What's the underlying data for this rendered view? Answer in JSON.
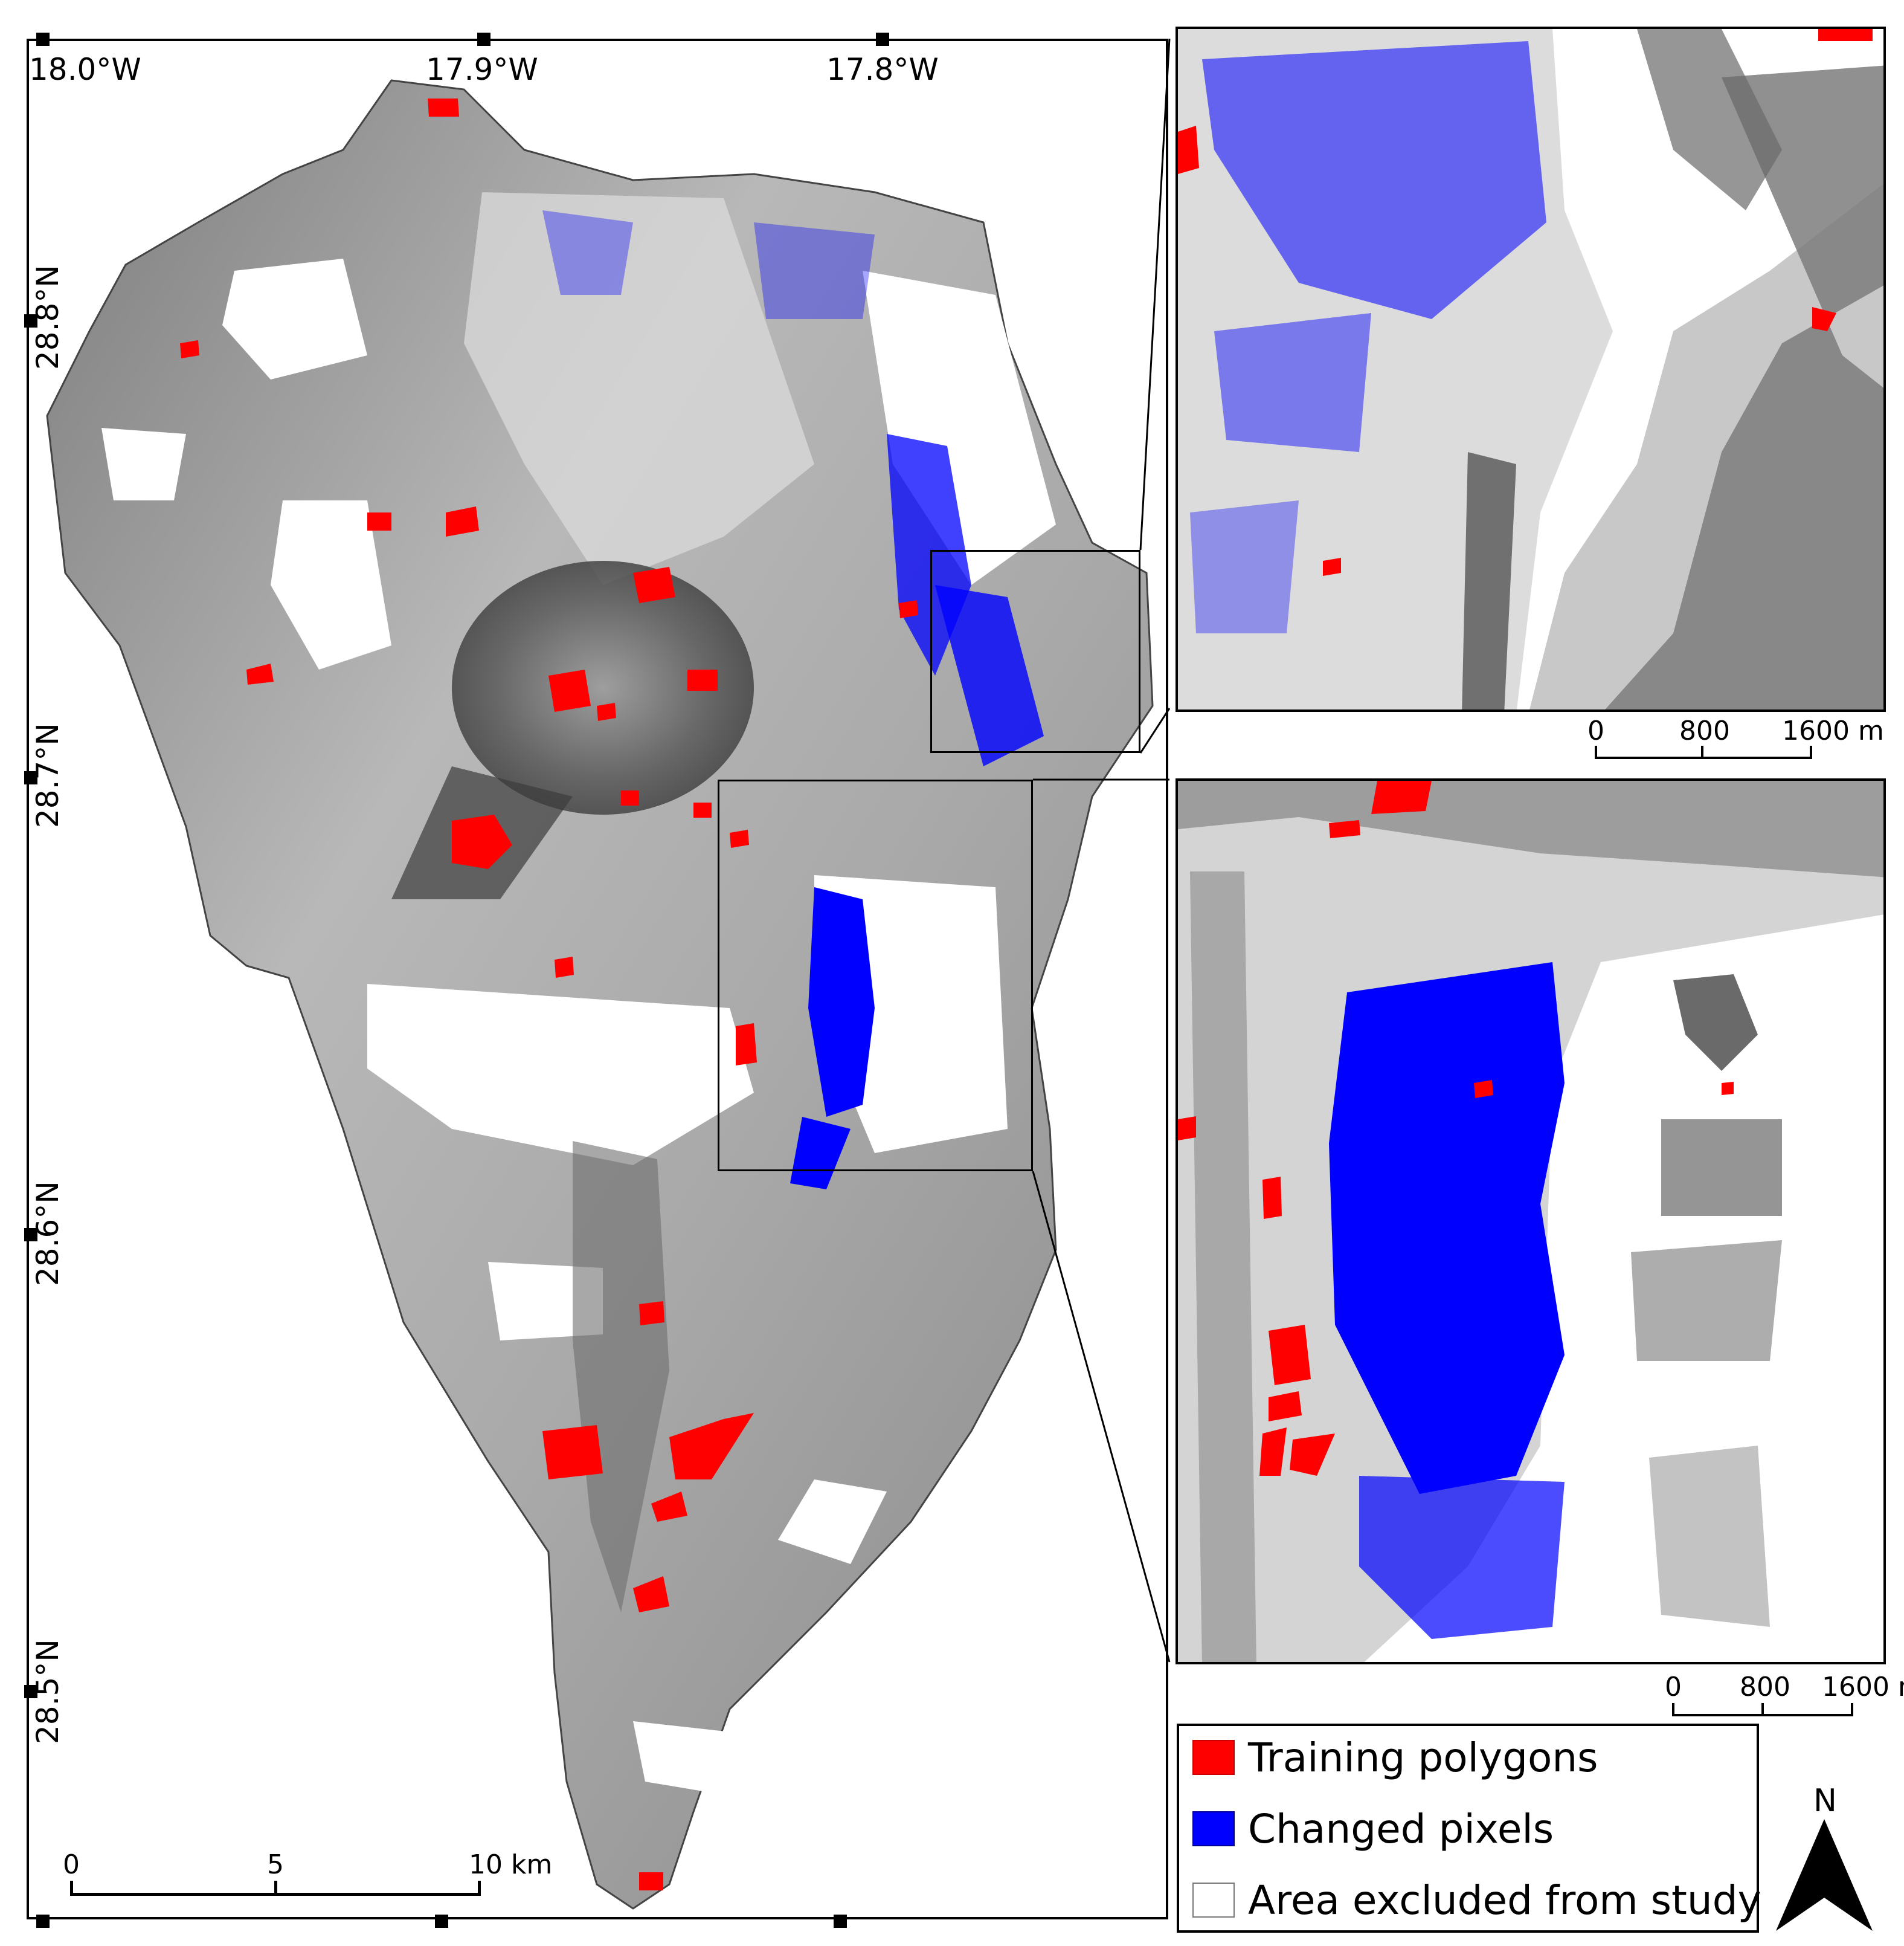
{
  "main_map": {
    "lon_labels": [
      "18.0°W",
      "17.9°W",
      "17.8°W"
    ],
    "lat_labels": [
      "28.8°N",
      "28.7°N",
      "28.6°N",
      "28.5°N"
    ],
    "scale_bar": {
      "ticks": [
        "0",
        "5",
        "10 km"
      ]
    }
  },
  "inset_top": {
    "scale_bar": {
      "ticks": [
        "0",
        "800",
        "1600 m"
      ]
    }
  },
  "inset_bottom": {
    "scale_bar": {
      "ticks": [
        "0",
        "800",
        "1600 m"
      ]
    }
  },
  "legend": {
    "items": [
      {
        "label": "Training polygons",
        "color": "#ff0000"
      },
      {
        "label": "Changed pixels",
        "color": "#0000ff"
      },
      {
        "label": "Area excluded from study",
        "color": "#ffffff"
      }
    ]
  },
  "north_arrow": {
    "label": "N"
  },
  "colors": {
    "training": "#ff0000",
    "changed": "#0000ff",
    "terrain": "#9a9a9a"
  }
}
